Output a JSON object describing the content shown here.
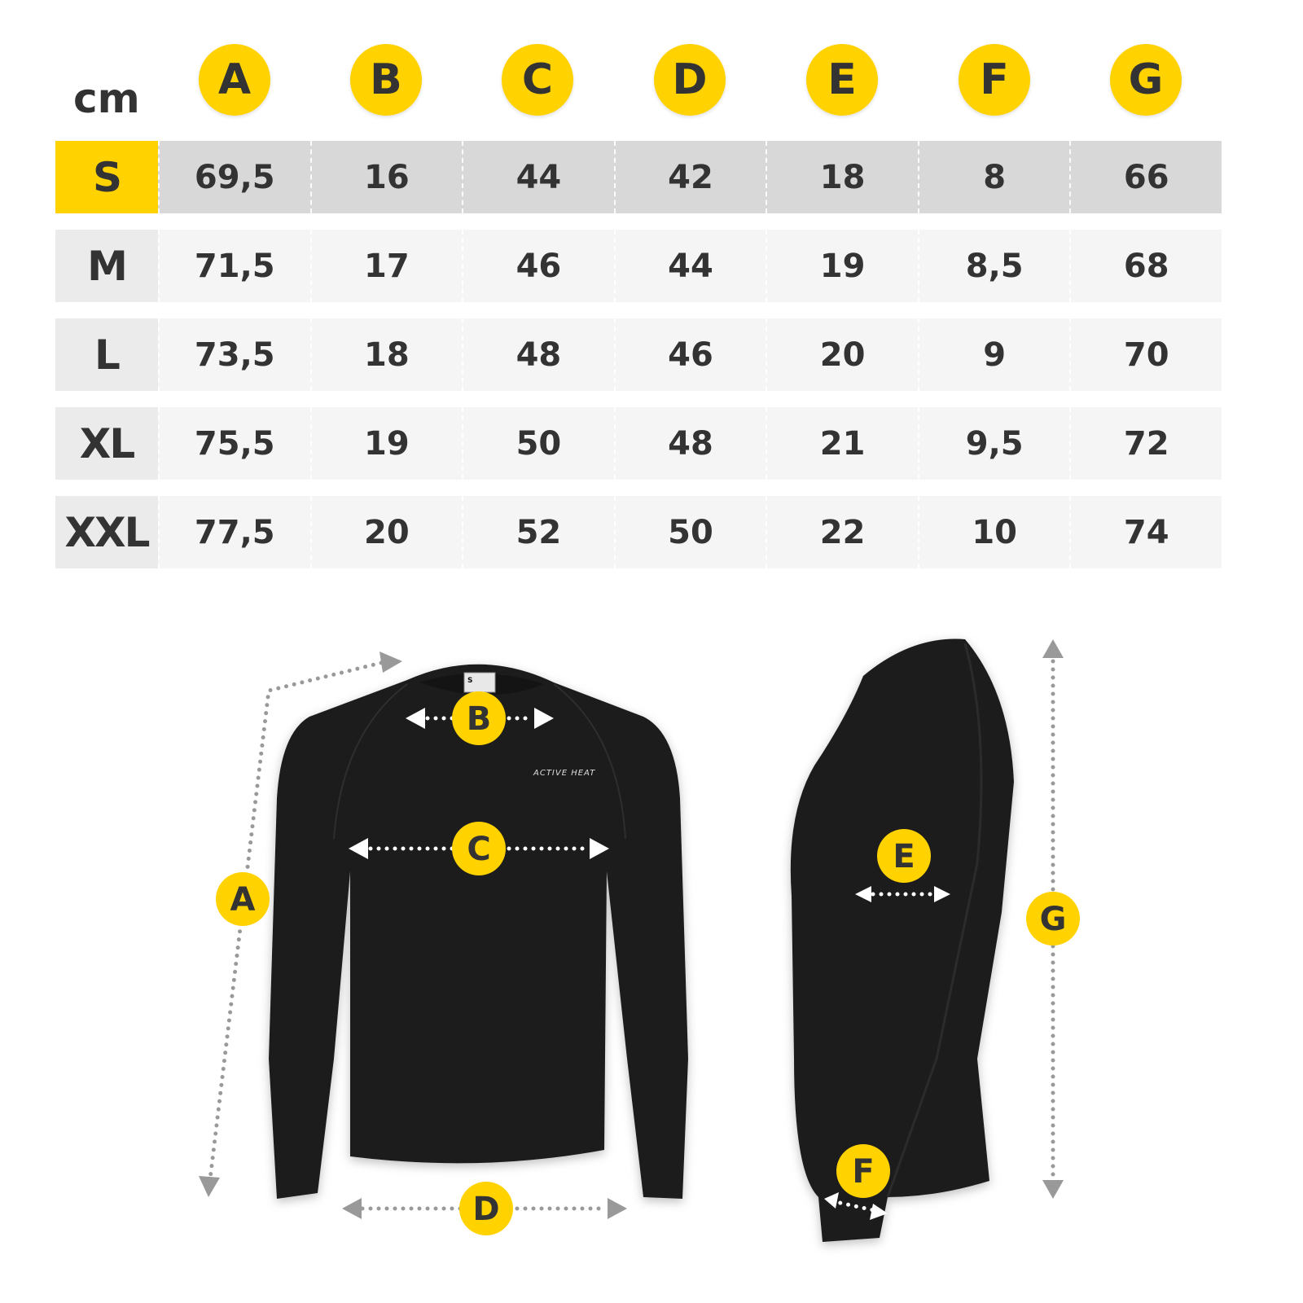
{
  "unit": "cm",
  "columns": [
    "A",
    "B",
    "C",
    "D",
    "E",
    "F",
    "G"
  ],
  "rows": [
    {
      "size": "S",
      "values": [
        "69,5",
        "16",
        "44",
        "42",
        "18",
        "8",
        "66"
      ],
      "highlighted": true
    },
    {
      "size": "M",
      "values": [
        "71,5",
        "17",
        "46",
        "44",
        "19",
        "8,5",
        "68"
      ]
    },
    {
      "size": "L",
      "values": [
        "73,5",
        "18",
        "48",
        "46",
        "20",
        "9",
        "70"
      ]
    },
    {
      "size": "XL",
      "values": [
        "75,5",
        "19",
        "50",
        "48",
        "21",
        "9,5",
        "72"
      ]
    },
    {
      "size": "XXL",
      "values": [
        "77,5",
        "20",
        "52",
        "50",
        "22",
        "10",
        "74"
      ]
    }
  ],
  "diagram": {
    "markers": {
      "A": "A",
      "B": "B",
      "C": "C",
      "D": "D",
      "E": "E",
      "F": "F",
      "G": "G"
    },
    "logo": "ACTIVE HEAT",
    "tag_size": "S"
  },
  "colors": {
    "accent": "#FFD200",
    "highlight_row": "#D8D8D8",
    "row": "#F5F5F5",
    "size_cell": "#EBEBEB",
    "text": "#333333",
    "shirt": "#1f1f1f"
  }
}
